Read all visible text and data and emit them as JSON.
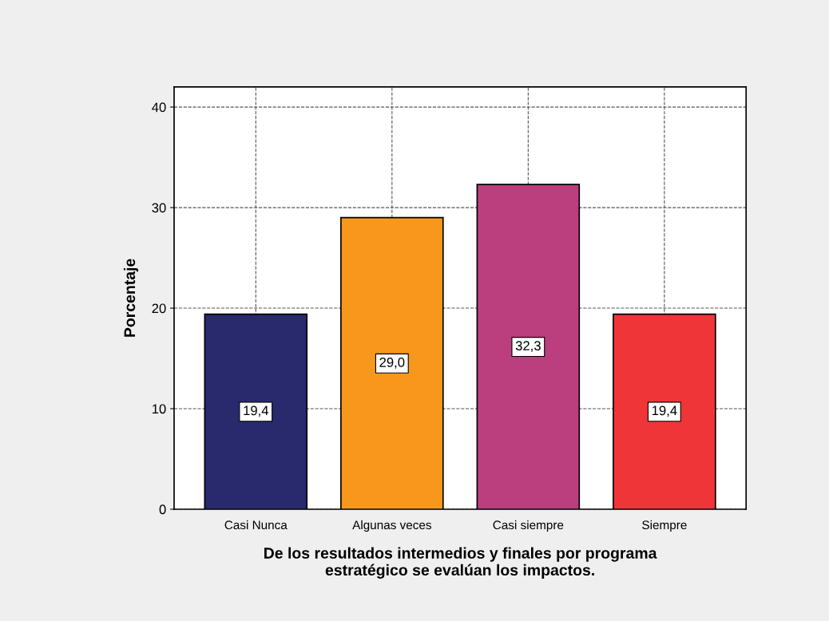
{
  "chart_data": {
    "type": "bar",
    "xlabel": "De los resultados intermedios y finales por programa\nestratégico se evalúan los impactos.",
    "ylabel": "Porcentaje",
    "categories": [
      "Casi Nunca",
      "Algunas veces",
      "Casi siempre",
      "Siempre"
    ],
    "values": [
      19.4,
      29.0,
      32.3,
      19.4
    ],
    "colors": [
      "#29296e",
      "#f7981d",
      "#bb3f7e",
      "#ef3538"
    ],
    "value_labels": [
      "19,4",
      "29,0",
      "32,3",
      "19,4"
    ],
    "ylim": [
      0,
      42
    ],
    "yticks": [
      0,
      10,
      20,
      30,
      40
    ],
    "grid": true
  }
}
